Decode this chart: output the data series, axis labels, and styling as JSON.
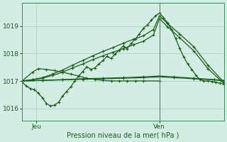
{
  "xlabel": "Pression niveau de la mer( hPa )",
  "ylim": [
    1015.55,
    1019.85
  ],
  "xlim": [
    0,
    100
  ],
  "xtick_positions": [
    7,
    68
  ],
  "xtick_labels": [
    "Jeu",
    "Ven"
  ],
  "ytick_positions": [
    1016,
    1017,
    1018,
    1019
  ],
  "ytick_labels": [
    "1016",
    "1017",
    "1018",
    "1019"
  ],
  "bg_color": "#d4ede4",
  "grid_color": "#a8d4c4",
  "line_color": "#1a5c1a",
  "vline_x": 68,
  "series": {
    "dip_wave": {
      "x": [
        0,
        2,
        4,
        6,
        8,
        10,
        12,
        14,
        16,
        18,
        20,
        22,
        24,
        26,
        28,
        30,
        32,
        34,
        36,
        38,
        40,
        42,
        44,
        46,
        48,
        50,
        52,
        54,
        56,
        58,
        60,
        62,
        64,
        66,
        68,
        70,
        72,
        74,
        76,
        78,
        80,
        82,
        84,
        86,
        88,
        90,
        92,
        94,
        96,
        98,
        100
      ],
      "y": [
        1016.95,
        1016.82,
        1016.72,
        1016.68,
        1016.55,
        1016.38,
        1016.18,
        1016.08,
        1016.12,
        1016.22,
        1016.45,
        1016.62,
        1016.78,
        1017.0,
        1017.18,
        1017.35,
        1017.52,
        1017.42,
        1017.48,
        1017.62,
        1017.75,
        1017.9,
        1017.82,
        1017.98,
        1018.12,
        1018.28,
        1018.18,
        1018.38,
        1018.52,
        1018.72,
        1018.92,
        1019.05,
        1019.22,
        1019.38,
        1019.48,
        1019.32,
        1019.12,
        1018.88,
        1018.55,
        1018.2,
        1017.88,
        1017.62,
        1017.42,
        1017.22,
        1017.05,
        1017.0,
        1017.0,
        1016.98,
        1016.95,
        1016.92,
        1016.88
      ]
    },
    "flat_slightly_up1": {
      "x": [
        0,
        10,
        20,
        30,
        40,
        50,
        60,
        68,
        75,
        85,
        95,
        100
      ],
      "y": [
        1017.0,
        1017.02,
        1017.05,
        1017.08,
        1017.1,
        1017.12,
        1017.15,
        1017.18,
        1017.15,
        1017.1,
        1017.05,
        1017.02
      ]
    },
    "flat_slightly_up2": {
      "x": [
        0,
        10,
        20,
        30,
        40,
        50,
        60,
        68,
        75,
        85,
        95,
        100
      ],
      "y": [
        1017.0,
        1017.02,
        1017.04,
        1017.06,
        1017.08,
        1017.1,
        1017.12,
        1017.15,
        1017.12,
        1017.08,
        1017.04,
        1017.0
      ]
    },
    "rising1": {
      "x": [
        0,
        5,
        10,
        15,
        20,
        25,
        30,
        35,
        40,
        45,
        50,
        55,
        60,
        65,
        68,
        72,
        78,
        85,
        92,
        100
      ],
      "y": [
        1017.0,
        1017.05,
        1017.12,
        1017.25,
        1017.4,
        1017.58,
        1017.75,
        1017.92,
        1018.08,
        1018.22,
        1018.38,
        1018.52,
        1018.65,
        1018.88,
        1019.38,
        1019.1,
        1018.72,
        1018.25,
        1017.58,
        1016.95
      ]
    },
    "rising2": {
      "x": [
        0,
        5,
        10,
        15,
        20,
        25,
        30,
        35,
        40,
        45,
        50,
        55,
        60,
        65,
        68,
        72,
        78,
        85,
        92,
        100
      ],
      "y": [
        1017.0,
        1017.04,
        1017.1,
        1017.2,
        1017.32,
        1017.48,
        1017.62,
        1017.78,
        1017.92,
        1018.05,
        1018.18,
        1018.32,
        1018.45,
        1018.68,
        1019.28,
        1018.98,
        1018.58,
        1018.1,
        1017.45,
        1016.9
      ]
    },
    "bump": {
      "x": [
        0,
        5,
        8,
        12,
        16,
        20,
        24,
        28,
        32,
        36,
        40,
        44,
        48,
        52,
        56,
        60,
        68
      ],
      "y": [
        1017.0,
        1017.32,
        1017.45,
        1017.42,
        1017.38,
        1017.32,
        1017.25,
        1017.18,
        1017.1,
        1017.06,
        1017.02,
        1017.0,
        1017.0,
        1017.0,
        1017.0,
        1017.0,
        1017.0
      ]
    }
  }
}
